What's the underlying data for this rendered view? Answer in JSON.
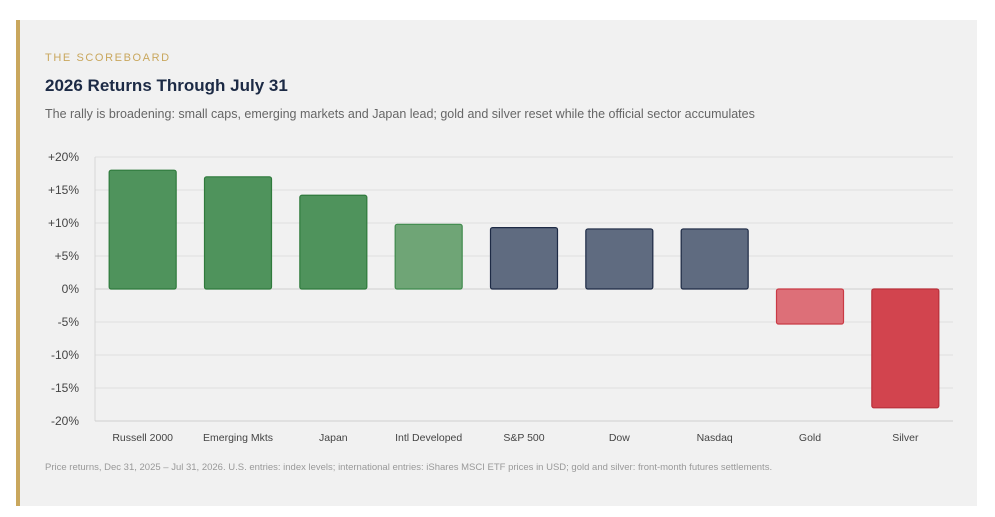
{
  "header": {
    "eyebrow": "THE SCOREBOARD",
    "title": "2026 Returns Through July 31",
    "subtitle": "The rally is broadening: small caps, emerging markets and Japan lead; gold and silver reset while the official sector accumulates"
  },
  "footnote": "Price returns, Dec 31, 2025 – Jul 31, 2026. U.S. entries: index levels; international entries: iShares MSCI ETF prices in USD; gold and silver: front-month futures settlements.",
  "colors": {
    "accent_gold": "#c9a75d",
    "title_navy": "#1c2a45",
    "bar_green": "#4f935c",
    "bar_green_light": "#6fa576",
    "bar_slate": "#5f6b80",
    "bar_red_light": "#dd6f78",
    "bar_red": "#d2444e"
  },
  "chart_data": {
    "type": "bar",
    "categories": [
      "Russell 2000",
      "Emerging Mkts",
      "Japan",
      "Intl Developed",
      "S&P 500",
      "Dow",
      "Nasdaq",
      "Gold",
      "Silver"
    ],
    "values": [
      18.0,
      17.0,
      14.2,
      9.8,
      9.3,
      9.1,
      9.1,
      -5.3,
      -18.0
    ],
    "bar_colors": [
      "#4f935c",
      "#4f935c",
      "#4f935c",
      "#6fa576",
      "#5f6b80",
      "#5f6b80",
      "#5f6b80",
      "#dd6f78",
      "#d2444e"
    ],
    "bar_strokes": [
      "#2f7a3c",
      "#2f7a3c",
      "#2f7a3c",
      "#3f8a4c",
      "#1d2a45",
      "#1d2a45",
      "#1d2a45",
      "#c93a45",
      "#b8303a"
    ],
    "ylim": [
      -20,
      20
    ],
    "yticks": [
      "+20%",
      "+15%",
      "+10%",
      "+5%",
      "0%",
      "-5%",
      "-10%",
      "-15%",
      "-20%"
    ],
    "ytick_values": [
      20,
      15,
      10,
      5,
      0,
      -5,
      -10,
      -15,
      -20
    ],
    "grid": true,
    "legend": "none"
  }
}
